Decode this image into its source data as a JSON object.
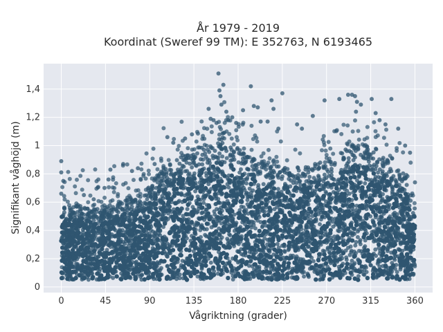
{
  "chart_data": {
    "type": "scatter",
    "title_line1": "År 1979 - 2019",
    "title_line2": "Koordinat (Sweref 99 TM): E 352763, N 6193465",
    "xlabel": "Vågriktning (grader)",
    "ylabel": "Signifikant våghöjd (m)",
    "xlim": [
      -18,
      378
    ],
    "ylim": [
      -0.04,
      1.58
    ],
    "x_ticks": [
      0,
      45,
      90,
      135,
      180,
      225,
      270,
      315,
      360
    ],
    "x_tick_labels": [
      "0",
      "45",
      "90",
      "135",
      "180",
      "225",
      "270",
      "315",
      "360"
    ],
    "y_ticks": [
      0,
      0.2,
      0.4,
      0.6,
      0.8,
      1.0,
      1.2,
      1.4
    ],
    "y_tick_labels": [
      "0",
      "0,2",
      "0,4",
      "0,6",
      "0,8",
      "1",
      "1,2",
      "1,4"
    ],
    "grid": true,
    "colors": {
      "marker": "#2f5570",
      "plot_bg": "#e5e8ef",
      "grid": "#ffffff"
    },
    "envelope": {
      "x": [
        0,
        10,
        20,
        30,
        40,
        50,
        60,
        70,
        80,
        90,
        100,
        110,
        120,
        130,
        140,
        150,
        160,
        170,
        180,
        190,
        200,
        210,
        220,
        230,
        240,
        250,
        260,
        270,
        280,
        290,
        300,
        310,
        320,
        330,
        340,
        350,
        360
      ],
      "y_max": [
        0.6,
        0.56,
        0.58,
        0.56,
        0.56,
        0.58,
        0.6,
        0.62,
        0.64,
        0.7,
        0.82,
        0.9,
        0.92,
        0.95,
        0.98,
        1.0,
        1.05,
        1.02,
        0.98,
        0.92,
        0.9,
        0.88,
        0.86,
        0.84,
        0.84,
        0.86,
        0.88,
        0.88,
        0.9,
        0.98,
        1.02,
        1.0,
        0.98,
        0.9,
        0.85,
        0.8,
        0.58
      ],
      "y_min": 0.05
    },
    "outliers": [
      {
        "x": 0,
        "y": 0.89
      },
      {
        "x": 0,
        "y": 0.81
      },
      {
        "x": 2,
        "y": 0.75
      },
      {
        "x": 0,
        "y": 0.66
      },
      {
        "x": 23,
        "y": 0.65
      },
      {
        "x": 33,
        "y": 0.62
      },
      {
        "x": 44,
        "y": 0.7
      },
      {
        "x": 48,
        "y": 0.76
      },
      {
        "x": 50,
        "y": 0.83
      },
      {
        "x": 63,
        "y": 0.87
      },
      {
        "x": 72,
        "y": 0.82
      },
      {
        "x": 78,
        "y": 0.84
      },
      {
        "x": 95,
        "y": 0.87
      },
      {
        "x": 108,
        "y": 1.06
      },
      {
        "x": 114,
        "y": 1.02
      },
      {
        "x": 126,
        "y": 1.05
      },
      {
        "x": 133,
        "y": 1.08
      },
      {
        "x": 150,
        "y": 1.26
      },
      {
        "x": 152,
        "y": 1.19
      },
      {
        "x": 155,
        "y": 1.18
      },
      {
        "x": 158,
        "y": 1.16
      },
      {
        "x": 160,
        "y": 1.51
      },
      {
        "x": 161,
        "y": 1.39
      },
      {
        "x": 162,
        "y": 1.35
      },
      {
        "x": 163,
        "y": 1.29
      },
      {
        "x": 165,
        "y": 1.43
      },
      {
        "x": 168,
        "y": 1.24
      },
      {
        "x": 170,
        "y": 1.18
      },
      {
        "x": 174,
        "y": 1.2
      },
      {
        "x": 178,
        "y": 1.16
      },
      {
        "x": 185,
        "y": 1.25
      },
      {
        "x": 193,
        "y": 1.42
      },
      {
        "x": 196,
        "y": 1.28
      },
      {
        "x": 200,
        "y": 1.27
      },
      {
        "x": 203,
        "y": 1.17
      },
      {
        "x": 210,
        "y": 1.17
      },
      {
        "x": 214,
        "y": 1.32
      },
      {
        "x": 216,
        "y": 1.26
      },
      {
        "x": 221,
        "y": 1.12
      },
      {
        "x": 225,
        "y": 1.37
      },
      {
        "x": 240,
        "y": 1.15
      },
      {
        "x": 245,
        "y": 1.12
      },
      {
        "x": 256,
        "y": 1.21
      },
      {
        "x": 268,
        "y": 1.32
      },
      {
        "x": 283,
        "y": 1.33
      },
      {
        "x": 292,
        "y": 1.36
      },
      {
        "x": 296,
        "y": 1.36
      },
      {
        "x": 299,
        "y": 1.35
      },
      {
        "x": 301,
        "y": 1.31
      },
      {
        "x": 305,
        "y": 1.29
      },
      {
        "x": 300,
        "y": 1.24
      },
      {
        "x": 316,
        "y": 1.33
      },
      {
        "x": 320,
        "y": 1.23
      },
      {
        "x": 324,
        "y": 1.18
      },
      {
        "x": 330,
        "y": 1.15
      },
      {
        "x": 336,
        "y": 1.33
      },
      {
        "x": 343,
        "y": 1.12
      },
      {
        "x": 350,
        "y": 1.0
      },
      {
        "x": 355,
        "y": 0.95
      },
      {
        "x": 360,
        "y": 0.74
      }
    ]
  }
}
